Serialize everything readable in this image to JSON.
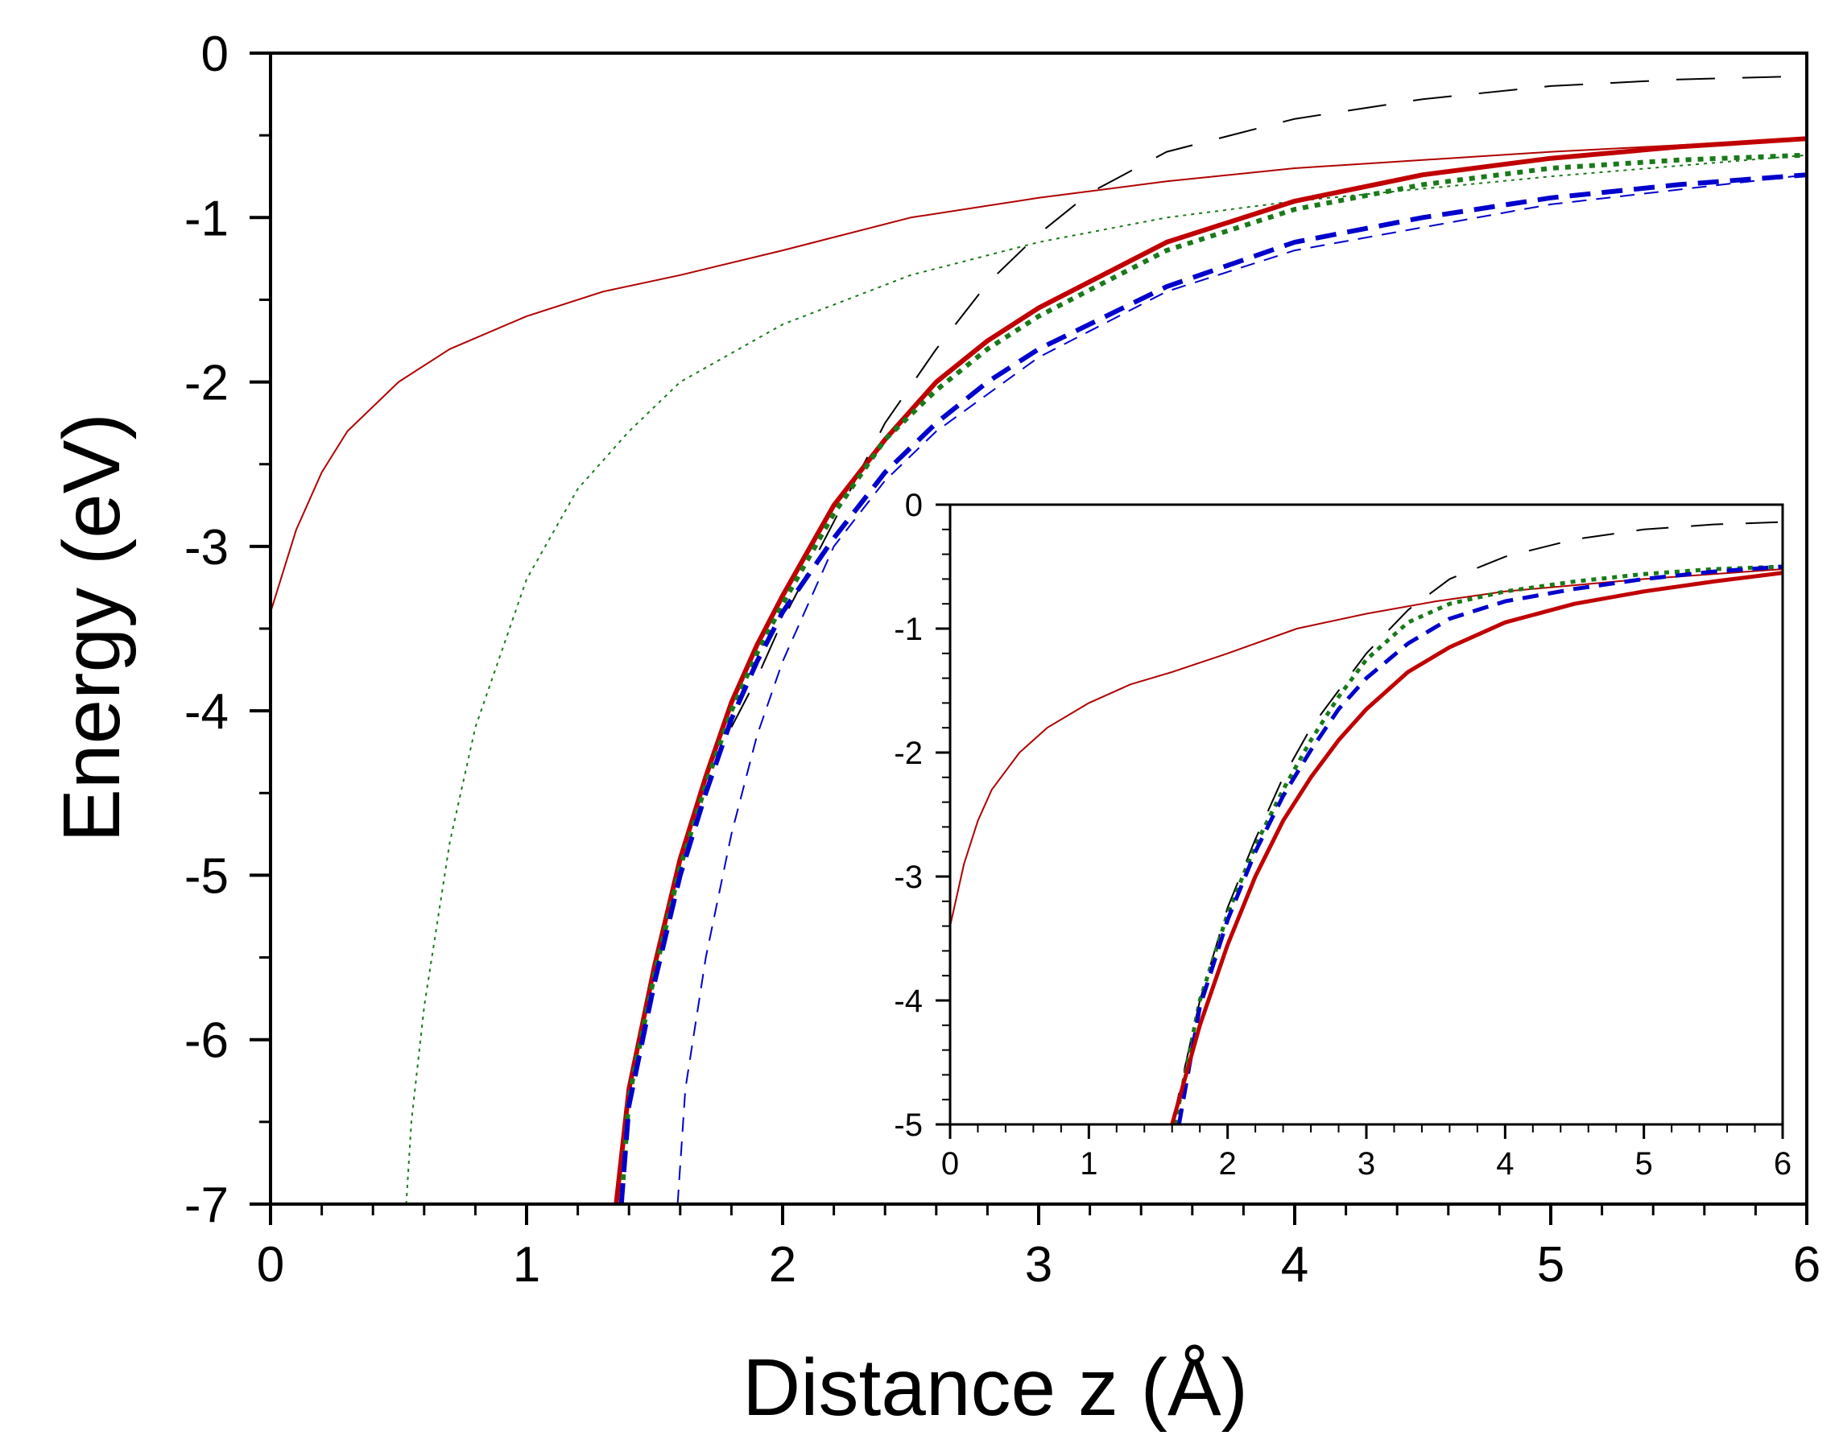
{
  "chart_data": [
    {
      "id": "main",
      "type": "line",
      "xlabel": "Distance z (Å)",
      "ylabel": "Energy (eV)",
      "xlim": [
        0,
        6
      ],
      "ylim": [
        -7,
        0
      ],
      "xticks": [
        0,
        1,
        2,
        3,
        4,
        5,
        6
      ],
      "yticks": [
        0,
        -1,
        -2,
        -3,
        -4,
        -5,
        -6,
        -7
      ],
      "xtick_labels": [
        "0",
        "1",
        "2",
        "3",
        "4",
        "5",
        "6"
      ],
      "ytick_labels": [
        "0",
        "-1",
        "-2",
        "-3",
        "-4",
        "-5",
        "-6",
        "-7"
      ],
      "x_minor_step": 0.2,
      "y_minor_step": 0.5,
      "grid": false,
      "series": [
        {
          "name": "thin-red-solid",
          "color": "#b00000",
          "style": "solid",
          "weight": "thin",
          "x": [
            0,
            0.1,
            0.2,
            0.3,
            0.5,
            0.7,
            1.0,
            1.3,
            1.6,
            2.0,
            2.5,
            3.0,
            3.5,
            4.0,
            5.0,
            6.0
          ],
          "y": [
            -3.4,
            -2.9,
            -2.55,
            -2.3,
            -2.0,
            -1.8,
            -1.6,
            -1.45,
            -1.35,
            -1.2,
            -1.0,
            -0.88,
            -0.78,
            -0.7,
            -0.6,
            -0.52
          ]
        },
        {
          "name": "thin-green-dotted",
          "color": "#1a7a1a",
          "style": "dotted",
          "weight": "thin",
          "x": [
            0.53,
            0.55,
            0.6,
            0.7,
            0.8,
            1.0,
            1.2,
            1.4,
            1.6,
            2.0,
            2.5,
            3.0,
            3.5,
            4.0,
            5.0,
            6.0
          ],
          "y": [
            -7.0,
            -6.5,
            -5.8,
            -4.8,
            -4.1,
            -3.2,
            -2.65,
            -2.3,
            -2.0,
            -1.65,
            -1.35,
            -1.15,
            -1.0,
            -0.9,
            -0.75,
            -0.62
          ]
        },
        {
          "name": "thin-blue-dashed",
          "color": "#0000cc",
          "style": "dashed",
          "weight": "thin",
          "x": [
            1.59,
            1.62,
            1.7,
            1.8,
            1.9,
            2.0,
            2.2,
            2.4,
            2.6,
            3.0,
            3.5,
            4.0,
            5.0,
            6.0
          ],
          "y": [
            -7.0,
            -6.3,
            -5.5,
            -4.75,
            -4.15,
            -3.7,
            -3.0,
            -2.6,
            -2.3,
            -1.85,
            -1.45,
            -1.2,
            -0.92,
            -0.74
          ]
        },
        {
          "name": "black-long-dash",
          "color": "#000000",
          "style": "longdash",
          "weight": "thin",
          "x": [
            1.8,
            1.9,
            2.0,
            2.2,
            2.4,
            2.6,
            2.8,
            3.0,
            3.2,
            3.5,
            4.0,
            4.5,
            5.0,
            5.5,
            6.0
          ],
          "y": [
            -4.1,
            -3.8,
            -3.45,
            -2.85,
            -2.25,
            -1.8,
            -1.4,
            -1.1,
            -0.85,
            -0.6,
            -0.4,
            -0.28,
            -0.2,
            -0.16,
            -0.14
          ]
        },
        {
          "name": "thick-red-solid",
          "color": "#c00000",
          "style": "solid",
          "weight": "thick",
          "x": [
            1.35,
            1.4,
            1.5,
            1.6,
            1.7,
            1.8,
            1.9,
            2.0,
            2.2,
            2.4,
            2.6,
            2.8,
            3.0,
            3.5,
            4.0,
            4.5,
            5.0,
            5.5,
            6.0
          ],
          "y": [
            -7.0,
            -6.3,
            -5.55,
            -4.9,
            -4.4,
            -3.95,
            -3.6,
            -3.3,
            -2.75,
            -2.35,
            -2.0,
            -1.75,
            -1.55,
            -1.15,
            -0.9,
            -0.74,
            -0.64,
            -0.57,
            -0.52
          ]
        },
        {
          "name": "thick-green-dotted",
          "color": "#1a7a1a",
          "style": "dotted",
          "weight": "thick",
          "x": [
            1.37,
            1.4,
            1.5,
            1.6,
            1.7,
            1.8,
            1.9,
            2.0,
            2.2,
            2.4,
            2.6,
            2.8,
            3.0,
            3.5,
            4.0,
            4.5,
            5.0,
            5.5,
            6.0
          ],
          "y": [
            -7.0,
            -6.35,
            -5.6,
            -4.95,
            -4.45,
            -4.0,
            -3.65,
            -3.35,
            -2.8,
            -2.35,
            -2.05,
            -1.8,
            -1.6,
            -1.2,
            -0.95,
            -0.8,
            -0.7,
            -0.65,
            -0.62
          ]
        },
        {
          "name": "thick-blue-dashed",
          "color": "#0000cc",
          "style": "dashed",
          "weight": "thick",
          "x": [
            1.37,
            1.4,
            1.5,
            1.6,
            1.7,
            1.8,
            1.9,
            2.0,
            2.2,
            2.4,
            2.6,
            2.8,
            3.0,
            3.5,
            4.0,
            4.5,
            5.0,
            5.5,
            6.0
          ],
          "y": [
            -7.0,
            -6.4,
            -5.65,
            -5.0,
            -4.5,
            -4.05,
            -3.7,
            -3.4,
            -2.95,
            -2.55,
            -2.25,
            -2.0,
            -1.8,
            -1.42,
            -1.15,
            -1.0,
            -0.88,
            -0.8,
            -0.74
          ]
        }
      ]
    },
    {
      "id": "inset",
      "type": "line",
      "xlabel": "",
      "ylabel": "",
      "xlim": [
        0,
        6
      ],
      "ylim": [
        -5,
        0
      ],
      "xticks": [
        0,
        1,
        2,
        3,
        4,
        5,
        6
      ],
      "yticks": [
        0,
        -1,
        -2,
        -3,
        -4,
        -5
      ],
      "xtick_labels": [
        "0",
        "1",
        "2",
        "3",
        "4",
        "5",
        "6"
      ],
      "ytick_labels": [
        "0",
        "-1",
        "-2",
        "-3",
        "-4",
        "-5"
      ],
      "x_minor_step": 0.2,
      "y_minor_step": 0.2,
      "grid": false,
      "series": [
        {
          "name": "thin-red-solid",
          "color": "#b00000",
          "style": "solid",
          "weight": "thin",
          "x": [
            0,
            0.1,
            0.2,
            0.3,
            0.5,
            0.7,
            1.0,
            1.3,
            1.6,
            2.0,
            2.5,
            3.0,
            3.5,
            4.0,
            5.0,
            6.0
          ],
          "y": [
            -3.4,
            -2.9,
            -2.55,
            -2.3,
            -2.0,
            -1.8,
            -1.6,
            -1.45,
            -1.35,
            -1.2,
            -1.0,
            -0.88,
            -0.78,
            -0.7,
            -0.6,
            -0.52
          ]
        },
        {
          "name": "black-long-dash",
          "color": "#000000",
          "style": "longdash",
          "weight": "thin",
          "x": [
            1.6,
            1.8,
            2.0,
            2.2,
            2.4,
            2.6,
            2.8,
            3.0,
            3.3,
            3.6,
            4.0,
            4.5,
            5.0,
            5.5,
            6.0
          ],
          "y": [
            -5.0,
            -4.0,
            -3.25,
            -2.7,
            -2.2,
            -1.8,
            -1.5,
            -1.2,
            -0.85,
            -0.6,
            -0.42,
            -0.28,
            -0.2,
            -0.16,
            -0.14
          ]
        },
        {
          "name": "thick-green-dotted",
          "color": "#1a7a1a",
          "style": "dotted",
          "weight": "thick",
          "x": [
            1.62,
            1.8,
            2.0,
            2.2,
            2.4,
            2.6,
            2.8,
            3.0,
            3.3,
            3.6,
            4.0,
            4.5,
            5.0,
            5.5,
            6.0
          ],
          "y": [
            -5.0,
            -4.0,
            -3.3,
            -2.75,
            -2.3,
            -1.9,
            -1.55,
            -1.25,
            -0.95,
            -0.8,
            -0.7,
            -0.62,
            -0.56,
            -0.52,
            -0.5
          ]
        },
        {
          "name": "thick-blue-dashed",
          "color": "#0000cc",
          "style": "dashed",
          "weight": "thick",
          "x": [
            1.65,
            1.8,
            2.0,
            2.2,
            2.4,
            2.6,
            2.8,
            3.0,
            3.3,
            3.6,
            4.0,
            4.5,
            5.0,
            5.5,
            6.0
          ],
          "y": [
            -5.0,
            -4.05,
            -3.35,
            -2.8,
            -2.35,
            -1.98,
            -1.65,
            -1.4,
            -1.12,
            -0.92,
            -0.78,
            -0.68,
            -0.6,
            -0.54,
            -0.5
          ]
        },
        {
          "name": "thick-red-solid",
          "color": "#c00000",
          "style": "solid",
          "weight": "thick",
          "x": [
            1.6,
            1.8,
            2.0,
            2.2,
            2.4,
            2.6,
            2.8,
            3.0,
            3.3,
            3.6,
            4.0,
            4.5,
            5.0,
            5.5,
            6.0
          ],
          "y": [
            -5.0,
            -4.2,
            -3.55,
            -3.0,
            -2.55,
            -2.2,
            -1.9,
            -1.65,
            -1.35,
            -1.15,
            -0.95,
            -0.8,
            -0.7,
            -0.62,
            -0.55
          ]
        }
      ]
    }
  ]
}
